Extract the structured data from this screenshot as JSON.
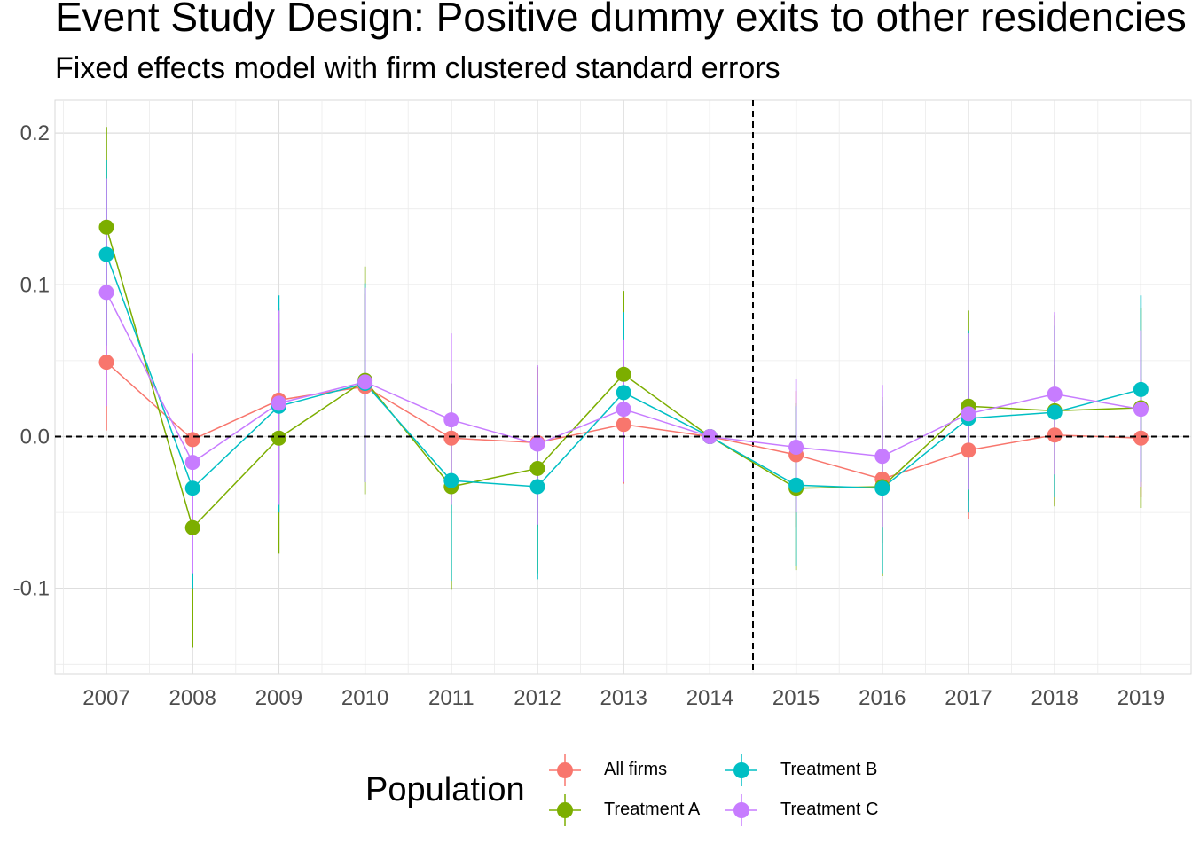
{
  "chart_data": {
    "type": "scatter",
    "title": "Event Study Design: Positive dummy exits to other residencies",
    "subtitle": "Fixed effects model with firm clustered standard errors",
    "x": [
      "2007",
      "2008",
      "2009",
      "2010",
      "2011",
      "2012",
      "2013",
      "2014",
      "2015",
      "2016",
      "2017",
      "2018",
      "2019"
    ],
    "ylim": [
      -0.155,
      0.21
    ],
    "y_ticks": [
      "0.2",
      "0.1",
      "0.0",
      "-0.1"
    ],
    "y_tick_values": [
      0.2,
      0.1,
      0.0,
      -0.1
    ],
    "reference_lines": {
      "horizontal_y": 0.0,
      "vertical_between": [
        "2014",
        "2015"
      ],
      "style": "dashed"
    },
    "grid": true,
    "legend": {
      "title": "Population",
      "placement": "bottom"
    },
    "series": [
      {
        "name": "All firms",
        "color": "#F8766D",
        "values": [
          0.049,
          -0.002,
          0.024,
          0.033,
          -0.001,
          -0.004,
          0.008,
          0.0,
          -0.012,
          -0.028,
          -0.009,
          0.001,
          -0.001
        ],
        "lower": [
          0.004,
          -0.05,
          -0.038,
          -0.03,
          -0.04,
          -0.06,
          -0.031,
          0.0,
          -0.06,
          -0.07,
          -0.054,
          -0.045,
          -0.04
        ],
        "upper": [
          0.095,
          0.054,
          0.085,
          0.094,
          0.035,
          0.046,
          0.046,
          0.0,
          0.03,
          0.02,
          0.033,
          0.047,
          0.038
        ]
      },
      {
        "name": "Treatment A",
        "color": "#7CAE00",
        "values": [
          0.138,
          -0.06,
          -0.001,
          0.037,
          -0.033,
          -0.021,
          0.041,
          0.0,
          -0.034,
          -0.033,
          0.02,
          0.017,
          0.019
        ],
        "lower": [
          0.07,
          -0.139,
          -0.077,
          -0.038,
          -0.101,
          -0.09,
          -0.015,
          0.0,
          -0.088,
          -0.092,
          -0.042,
          -0.046,
          -0.047
        ],
        "upper": [
          0.204,
          0.02,
          0.075,
          0.112,
          0.035,
          0.046,
          0.096,
          0.0,
          0.022,
          0.026,
          0.083,
          0.08,
          0.085
        ]
      },
      {
        "name": "Treatment B",
        "color": "#00BFC4",
        "values": [
          0.12,
          -0.034,
          0.02,
          0.035,
          -0.029,
          -0.033,
          0.029,
          0.0,
          -0.032,
          -0.034,
          0.012,
          0.016,
          0.031
        ],
        "lower": [
          0.06,
          -0.1,
          -0.05,
          -0.03,
          -0.095,
          -0.094,
          -0.025,
          0.0,
          -0.085,
          -0.09,
          -0.05,
          -0.04,
          -0.03
        ],
        "upper": [
          0.182,
          0.035,
          0.093,
          0.101,
          0.035,
          0.027,
          0.082,
          0.0,
          0.02,
          0.024,
          0.07,
          0.073,
          0.093
        ]
      },
      {
        "name": "Treatment C",
        "color": "#C77CFF",
        "values": [
          0.095,
          -0.017,
          0.022,
          0.036,
          0.011,
          -0.005,
          0.018,
          0.0,
          -0.007,
          -0.013,
          0.015,
          0.028,
          0.018
        ],
        "lower": [
          0.02,
          -0.09,
          -0.045,
          -0.03,
          -0.045,
          -0.058,
          -0.03,
          0.0,
          -0.05,
          -0.06,
          -0.035,
          -0.025,
          -0.033
        ],
        "upper": [
          0.17,
          0.055,
          0.083,
          0.098,
          0.068,
          0.047,
          0.064,
          0.0,
          0.038,
          0.034,
          0.068,
          0.082,
          0.07
        ]
      }
    ]
  }
}
